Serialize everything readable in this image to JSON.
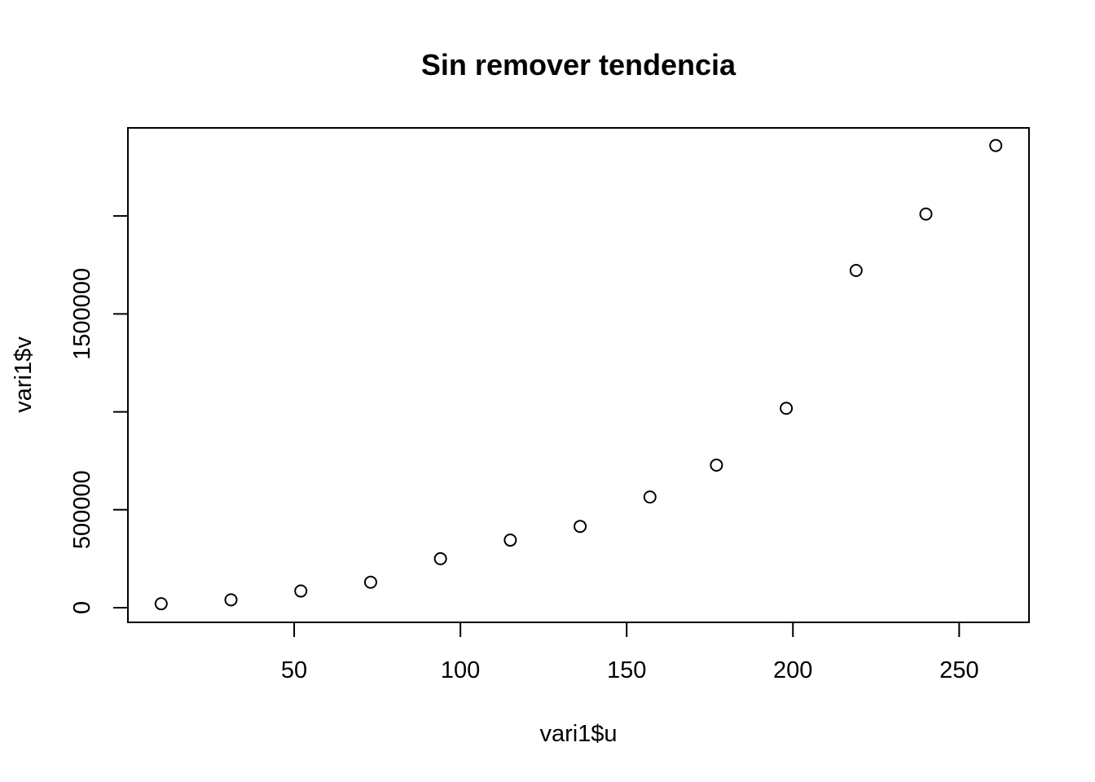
{
  "chart_data": {
    "type": "scatter",
    "title": "Sin remover tendencia",
    "xlabel": "vari1$u",
    "ylabel": "vari1$v",
    "x": [
      10,
      31,
      52,
      73,
      94,
      115,
      136,
      157,
      177,
      198,
      219,
      240,
      261
    ],
    "y": [
      20000,
      40000,
      85000,
      130000,
      250000,
      345000,
      415000,
      565000,
      728000,
      1018000,
      1722000,
      2010000,
      2360000
    ],
    "xlim": [
      0,
      271
    ],
    "ylim": [
      -75000,
      2450000
    ],
    "xticks": [
      50,
      100,
      150,
      200,
      250
    ],
    "yticks": [
      0,
      500000,
      1000000,
      1500000,
      2000000
    ],
    "xtick_labels": [
      "50",
      "100",
      "150",
      "200",
      "250"
    ],
    "ytick_labels": [
      "0",
      "500000",
      "",
      "1500000",
      ""
    ],
    "marker": "open-circle",
    "grid": false,
    "legend": false
  }
}
